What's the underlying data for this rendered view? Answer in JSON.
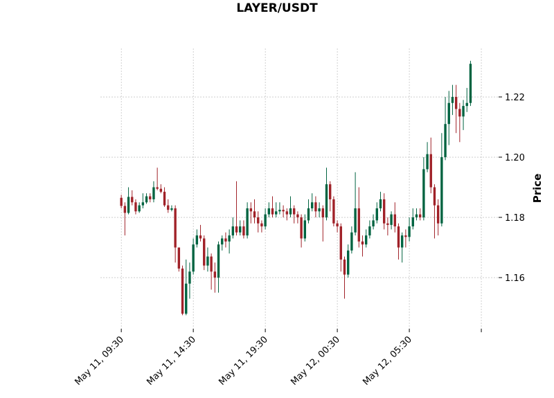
{
  "chart_data": {
    "type": "candlestick",
    "title": "LAYER/USDT",
    "y_label": "Price",
    "open": [
      1.1865,
      1.1838,
      1.1815,
      1.1868,
      1.185,
      1.182,
      1.184,
      1.185,
      1.187,
      1.186,
      1.19,
      1.1895,
      1.1885,
      1.184,
      1.1825,
      1.183,
      1.17,
      1.163,
      1.148,
      1.158,
      1.162,
      1.171,
      1.174,
      1.173,
      1.164,
      1.167,
      1.162,
      1.16,
      1.171,
      1.173,
      1.172,
      1.174,
      1.177,
      1.175,
      1.177,
      1.174,
      1.183,
      1.182,
      1.18,
      1.178,
      1.177,
      1.181,
      1.183,
      1.181,
      1.182,
      1.1825,
      1.182,
      1.181,
      1.183,
      1.181,
      1.18,
      1.173,
      1.179,
      1.183,
      1.185,
      1.182,
      1.183,
      1.18,
      1.191,
      1.186,
      1.178,
      1.177,
      1.166,
      1.161,
      1.169,
      1.175,
      1.183,
      1.172,
      1.171,
      1.174,
      1.177,
      1.179,
      1.183,
      1.186,
      1.178,
      1.1775,
      1.181,
      1.177,
      1.17,
      1.174,
      1.1735,
      1.177,
      1.18,
      1.181,
      1.18,
      1.196,
      1.201,
      1.19,
      1.184,
      1.178,
      1.2,
      1.211,
      1.218,
      1.22,
      1.216,
      1.2135,
      1.217,
      1.218
    ],
    "high": [
      1.1875,
      1.185,
      1.19,
      1.189,
      1.186,
      1.185,
      1.188,
      1.188,
      1.188,
      1.192,
      1.1965,
      1.191,
      1.19,
      1.186,
      1.184,
      1.184,
      1.17,
      1.164,
      1.166,
      1.165,
      1.173,
      1.176,
      1.1775,
      1.174,
      1.17,
      1.168,
      1.165,
      1.172,
      1.174,
      1.175,
      1.176,
      1.18,
      1.192,
      1.179,
      1.179,
      1.185,
      1.185,
      1.186,
      1.182,
      1.179,
      1.183,
      1.185,
      1.187,
      1.185,
      1.185,
      1.184,
      1.183,
      1.187,
      1.184,
      1.182,
      1.181,
      1.181,
      1.186,
      1.188,
      1.187,
      1.185,
      1.184,
      1.1965,
      1.192,
      1.187,
      1.179,
      1.178,
      1.167,
      1.171,
      1.177,
      1.195,
      1.19,
      1.174,
      1.176,
      1.179,
      1.181,
      1.185,
      1.1885,
      1.188,
      1.18,
      1.182,
      1.185,
      1.178,
      1.175,
      1.176,
      1.18,
      1.183,
      1.183,
      1.183,
      1.2,
      1.205,
      1.2065,
      1.191,
      1.186,
      1.208,
      1.22,
      1.222,
      1.224,
      1.224,
      1.218,
      1.219,
      1.223,
      1.232
    ],
    "low": [
      1.183,
      1.174,
      1.181,
      1.184,
      1.181,
      1.1815,
      1.183,
      1.1845,
      1.185,
      1.185,
      1.189,
      1.188,
      1.1835,
      1.1815,
      1.182,
      1.165,
      1.162,
      1.1475,
      1.1475,
      1.153,
      1.161,
      1.17,
      1.172,
      1.1625,
      1.162,
      1.156,
      1.155,
      1.155,
      1.169,
      1.17,
      1.168,
      1.173,
      1.174,
      1.174,
      1.173,
      1.173,
      1.178,
      1.178,
      1.175,
      1.175,
      1.176,
      1.18,
      1.18,
      1.18,
      1.181,
      1.18,
      1.179,
      1.18,
      1.178,
      1.178,
      1.17,
      1.172,
      1.178,
      1.182,
      1.18,
      1.18,
      1.172,
      1.179,
      1.182,
      1.177,
      1.175,
      1.162,
      1.153,
      1.16,
      1.168,
      1.174,
      1.17,
      1.167,
      1.17,
      1.173,
      1.176,
      1.178,
      1.182,
      1.176,
      1.174,
      1.176,
      1.175,
      1.166,
      1.165,
      1.17,
      1.172,
      1.176,
      1.179,
      1.179,
      1.179,
      1.195,
      1.188,
      1.173,
      1.174,
      1.177,
      1.199,
      1.204,
      1.214,
      1.208,
      1.205,
      1.209,
      1.215,
      1.217
    ],
    "close": [
      1.1838,
      1.1815,
      1.1868,
      1.185,
      1.182,
      1.184,
      1.185,
      1.187,
      1.186,
      1.19,
      1.1895,
      1.1885,
      1.184,
      1.1825,
      1.183,
      1.17,
      1.163,
      1.148,
      1.158,
      1.162,
      1.171,
      1.174,
      1.173,
      1.164,
      1.167,
      1.162,
      1.16,
      1.171,
      1.173,
      1.172,
      1.174,
      1.177,
      1.175,
      1.177,
      1.174,
      1.183,
      1.182,
      1.18,
      1.178,
      1.177,
      1.181,
      1.183,
      1.181,
      1.182,
      1.1825,
      1.182,
      1.181,
      1.183,
      1.181,
      1.18,
      1.173,
      1.179,
      1.183,
      1.185,
      1.182,
      1.183,
      1.18,
      1.191,
      1.186,
      1.178,
      1.177,
      1.166,
      1.161,
      1.169,
      1.175,
      1.183,
      1.172,
      1.171,
      1.174,
      1.177,
      1.179,
      1.183,
      1.186,
      1.178,
      1.1775,
      1.181,
      1.177,
      1.17,
      1.174,
      1.1735,
      1.177,
      1.18,
      1.181,
      1.18,
      1.196,
      1.201,
      1.19,
      1.184,
      1.178,
      1.2,
      1.211,
      1.218,
      1.22,
      1.216,
      1.2135,
      1.217,
      1.218,
      1.231
    ],
    "up_color": "#006340",
    "down_color": "#a02128",
    "xlim": [
      -5.8,
      104.8
    ],
    "ylim": [
      1.143,
      1.2361
    ],
    "xticks": [
      {
        "value": 0,
        "label": "May 11, 09:30"
      },
      {
        "value": 20,
        "label": "May 11, 14:30"
      },
      {
        "value": 40,
        "label": "May 11, 19:30"
      },
      {
        "value": 60,
        "label": "May 12, 00:30"
      },
      {
        "value": 80,
        "label": "May 12, 05:30"
      },
      {
        "value": 100,
        "label": null
      }
    ],
    "yticks": [
      1.16,
      1.18,
      {
        "value": 1.2,
        "label": "1.20"
      },
      1.22
    ],
    "grid": true
  }
}
